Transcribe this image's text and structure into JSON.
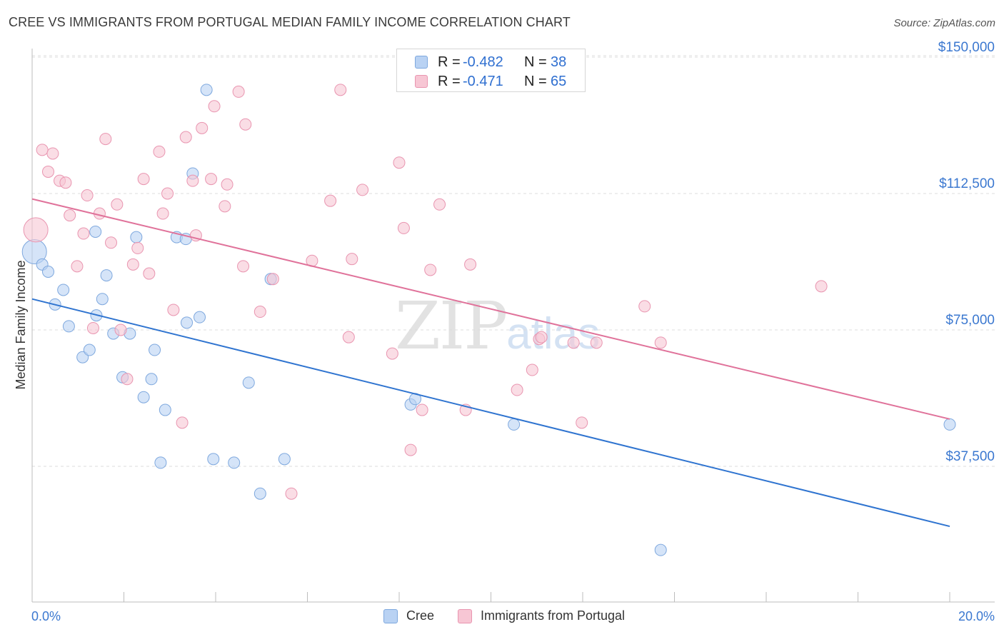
{
  "title": "CREE VS IMMIGRANTS FROM PORTUGAL MEDIAN FAMILY INCOME CORRELATION CHART",
  "source": "Source: ZipAtlas.com",
  "watermark": {
    "zip": "ZIP",
    "atlas": "atlas"
  },
  "legend": {
    "rows": [
      {
        "r_label": "R =",
        "r_value": "-0.482",
        "n_label": "N =",
        "n_value": "38"
      },
      {
        "r_label": "R =",
        "r_value": "-0.471",
        "n_label": "N =",
        "n_value": "65"
      }
    ]
  },
  "bottom_legend": {
    "cree": "Cree",
    "portugal": "Immigrants from Portugal"
  },
  "colors": {
    "cree_fill": "#b9d2f3",
    "cree_stroke": "#7ea8de",
    "cree_line": "#2f74d0",
    "portugal_fill": "#f7c6d4",
    "portugal_stroke": "#e995b0",
    "portugal_line": "#e0729a",
    "tick_label": "#3b78d0",
    "grid": "#dcdcdc"
  },
  "chart_data": {
    "type": "scatter",
    "title": "CREE VS IMMIGRANTS FROM PORTUGAL MEDIAN FAMILY INCOME CORRELATION CHART",
    "xlabel": "",
    "ylabel": "Median Family Income",
    "xlim": [
      0,
      20
    ],
    "ylim": [
      0,
      155000
    ],
    "x_tick_labels": [
      "0.0%",
      "20.0%"
    ],
    "y_ticks": [
      37500,
      75000,
      112500,
      150000
    ],
    "y_tick_labels": [
      "$37,500",
      "$75,000",
      "$112,500",
      "$150,000"
    ],
    "grid": true,
    "series": [
      {
        "name": "Cree",
        "r": -0.482,
        "n": 38,
        "trend": {
          "x": [
            0,
            20
          ],
          "y": [
            83500,
            21000
          ]
        },
        "points": [
          {
            "x": 0.05,
            "y": 96500,
            "big": true
          },
          {
            "x": 0.22,
            "y": 93000
          },
          {
            "x": 0.35,
            "y": 91000
          },
          {
            "x": 0.5,
            "y": 82000
          },
          {
            "x": 0.68,
            "y": 86000
          },
          {
            "x": 0.8,
            "y": 76000
          },
          {
            "x": 1.1,
            "y": 67500
          },
          {
            "x": 1.25,
            "y": 69500
          },
          {
            "x": 1.38,
            "y": 102000
          },
          {
            "x": 1.4,
            "y": 79000
          },
          {
            "x": 1.53,
            "y": 83500
          },
          {
            "x": 1.62,
            "y": 90000
          },
          {
            "x": 1.77,
            "y": 74000
          },
          {
            "x": 1.97,
            "y": 62000
          },
          {
            "x": 2.13,
            "y": 74000
          },
          {
            "x": 2.27,
            "y": 100500
          },
          {
            "x": 2.43,
            "y": 56500
          },
          {
            "x": 2.6,
            "y": 61500
          },
          {
            "x": 2.67,
            "y": 69500
          },
          {
            "x": 2.8,
            "y": 38500
          },
          {
            "x": 2.9,
            "y": 53000
          },
          {
            "x": 3.15,
            "y": 100500
          },
          {
            "x": 3.35,
            "y": 100000
          },
          {
            "x": 3.37,
            "y": 77000
          },
          {
            "x": 3.5,
            "y": 118000
          },
          {
            "x": 3.65,
            "y": 78500
          },
          {
            "x": 3.8,
            "y": 141000
          },
          {
            "x": 3.95,
            "y": 39500
          },
          {
            "x": 4.4,
            "y": 38500
          },
          {
            "x": 4.72,
            "y": 60500
          },
          {
            "x": 4.97,
            "y": 30000
          },
          {
            "x": 5.2,
            "y": 89000
          },
          {
            "x": 5.5,
            "y": 39500
          },
          {
            "x": 8.25,
            "y": 54500
          },
          {
            "x": 8.35,
            "y": 56000
          },
          {
            "x": 10.5,
            "y": 49000
          },
          {
            "x": 13.7,
            "y": 14500
          },
          {
            "x": 20.0,
            "y": 49000
          }
        ]
      },
      {
        "name": "Immigrants from Portugal",
        "r": -0.471,
        "n": 65,
        "trend": {
          "x": [
            0,
            20
          ],
          "y": [
            111000,
            50500
          ]
        },
        "points": [
          {
            "x": 0.08,
            "y": 102500,
            "big": true
          },
          {
            "x": 0.22,
            "y": 124500
          },
          {
            "x": 0.35,
            "y": 118500
          },
          {
            "x": 0.45,
            "y": 123500
          },
          {
            "x": 0.6,
            "y": 116000
          },
          {
            "x": 0.73,
            "y": 115500
          },
          {
            "x": 0.82,
            "y": 106500
          },
          {
            "x": 0.98,
            "y": 92500
          },
          {
            "x": 1.12,
            "y": 101500
          },
          {
            "x": 1.2,
            "y": 112000
          },
          {
            "x": 1.33,
            "y": 75500
          },
          {
            "x": 1.47,
            "y": 107000
          },
          {
            "x": 1.6,
            "y": 127500
          },
          {
            "x": 1.72,
            "y": 99000
          },
          {
            "x": 1.85,
            "y": 109500
          },
          {
            "x": 1.93,
            "y": 75000
          },
          {
            "x": 2.07,
            "y": 61500
          },
          {
            "x": 2.2,
            "y": 93000
          },
          {
            "x": 2.3,
            "y": 97500
          },
          {
            "x": 2.43,
            "y": 116500
          },
          {
            "x": 2.55,
            "y": 90500
          },
          {
            "x": 2.77,
            "y": 124000
          },
          {
            "x": 2.85,
            "y": 107000
          },
          {
            "x": 2.95,
            "y": 112500
          },
          {
            "x": 3.08,
            "y": 80500
          },
          {
            "x": 3.27,
            "y": 49500
          },
          {
            "x": 3.35,
            "y": 128000
          },
          {
            "x": 3.5,
            "y": 116000
          },
          {
            "x": 3.57,
            "y": 101000
          },
          {
            "x": 3.7,
            "y": 130500
          },
          {
            "x": 3.9,
            "y": 116500
          },
          {
            "x": 3.97,
            "y": 136500
          },
          {
            "x": 4.2,
            "y": 109000
          },
          {
            "x": 4.25,
            "y": 115000
          },
          {
            "x": 4.5,
            "y": 140500
          },
          {
            "x": 4.6,
            "y": 92500
          },
          {
            "x": 4.65,
            "y": 131500
          },
          {
            "x": 4.97,
            "y": 80000
          },
          {
            "x": 5.25,
            "y": 89000
          },
          {
            "x": 5.65,
            "y": 30000
          },
          {
            "x": 6.1,
            "y": 94000
          },
          {
            "x": 6.5,
            "y": 110500
          },
          {
            "x": 6.72,
            "y": 141000
          },
          {
            "x": 6.9,
            "y": 73000
          },
          {
            "x": 6.97,
            "y": 94500
          },
          {
            "x": 7.2,
            "y": 113500
          },
          {
            "x": 7.85,
            "y": 68500
          },
          {
            "x": 8.0,
            "y": 121000
          },
          {
            "x": 8.1,
            "y": 103000
          },
          {
            "x": 8.25,
            "y": 42000
          },
          {
            "x": 8.5,
            "y": 53000
          },
          {
            "x": 8.68,
            "y": 91500
          },
          {
            "x": 8.88,
            "y": 109500
          },
          {
            "x": 9.45,
            "y": 53000
          },
          {
            "x": 9.55,
            "y": 93000
          },
          {
            "x": 10.57,
            "y": 58500
          },
          {
            "x": 10.9,
            "y": 64000
          },
          {
            "x": 11.05,
            "y": 72500
          },
          {
            "x": 11.1,
            "y": 73000
          },
          {
            "x": 11.8,
            "y": 71500
          },
          {
            "x": 11.98,
            "y": 49500
          },
          {
            "x": 12.3,
            "y": 71500
          },
          {
            "x": 13.35,
            "y": 81500
          },
          {
            "x": 13.7,
            "y": 71500
          },
          {
            "x": 17.2,
            "y": 87000
          }
        ]
      }
    ]
  }
}
